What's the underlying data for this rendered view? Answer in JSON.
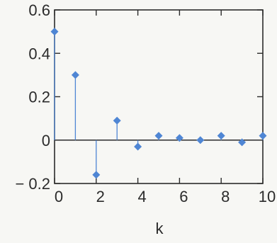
{
  "chart_data": {
    "type": "scatter",
    "style": "stem",
    "marker": "diamond",
    "title": "",
    "xlabel": "k",
    "ylabel": "",
    "xlim": [
      0,
      10
    ],
    "ylim": [
      -0.2,
      0.6
    ],
    "xticks": [
      0,
      2,
      4,
      6,
      8,
      10
    ],
    "xtick_labels": [
      "0",
      "2",
      "4",
      "6",
      "8",
      "10"
    ],
    "yticks": [
      -0.2,
      0,
      0.2,
      0.4,
      0.6
    ],
    "ytick_labels": [
      "− 0.2",
      "0",
      "0.2",
      "0.4",
      "0.6"
    ],
    "zero_line": true,
    "grid": false,
    "series": [
      {
        "x": [
          0,
          1,
          2,
          3,
          4,
          5,
          6,
          7,
          8,
          9,
          10
        ],
        "y": [
          0.5,
          0.3,
          -0.16,
          0.09,
          -0.03,
          0.02,
          0.01,
          0.0,
          0.02,
          -0.01,
          0.02
        ]
      }
    ],
    "colors": {
      "marker": "#4f86d4",
      "stem": "#4f86d4",
      "axes": "#2b2b2b",
      "background": "#f7f7f4"
    }
  }
}
